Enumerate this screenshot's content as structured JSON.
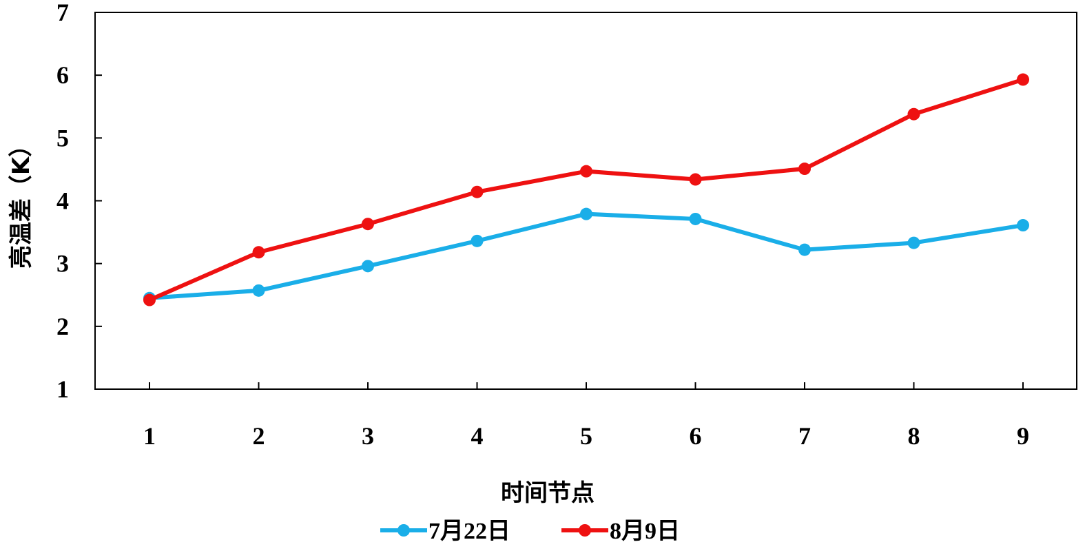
{
  "chart_data": {
    "type": "line",
    "title": "",
    "xlabel": "时间节点",
    "ylabel": "亮温差（K）",
    "x": [
      1,
      2,
      3,
      4,
      5,
      6,
      7,
      8,
      9
    ],
    "ylim": [
      1,
      7
    ],
    "yticks": [
      1,
      2,
      3,
      4,
      5,
      6,
      7
    ],
    "grid": false,
    "legend": "bottom",
    "series": [
      {
        "name": "7月22日",
        "color": "#1aaee8",
        "values": [
          2.45,
          2.57,
          2.96,
          3.36,
          3.79,
          3.71,
          3.22,
          3.33,
          3.61
        ]
      },
      {
        "name": "8月9日",
        "color": "#ee1111",
        "values": [
          2.42,
          3.18,
          3.63,
          4.14,
          4.47,
          4.34,
          4.51,
          5.38,
          5.93
        ]
      }
    ]
  }
}
